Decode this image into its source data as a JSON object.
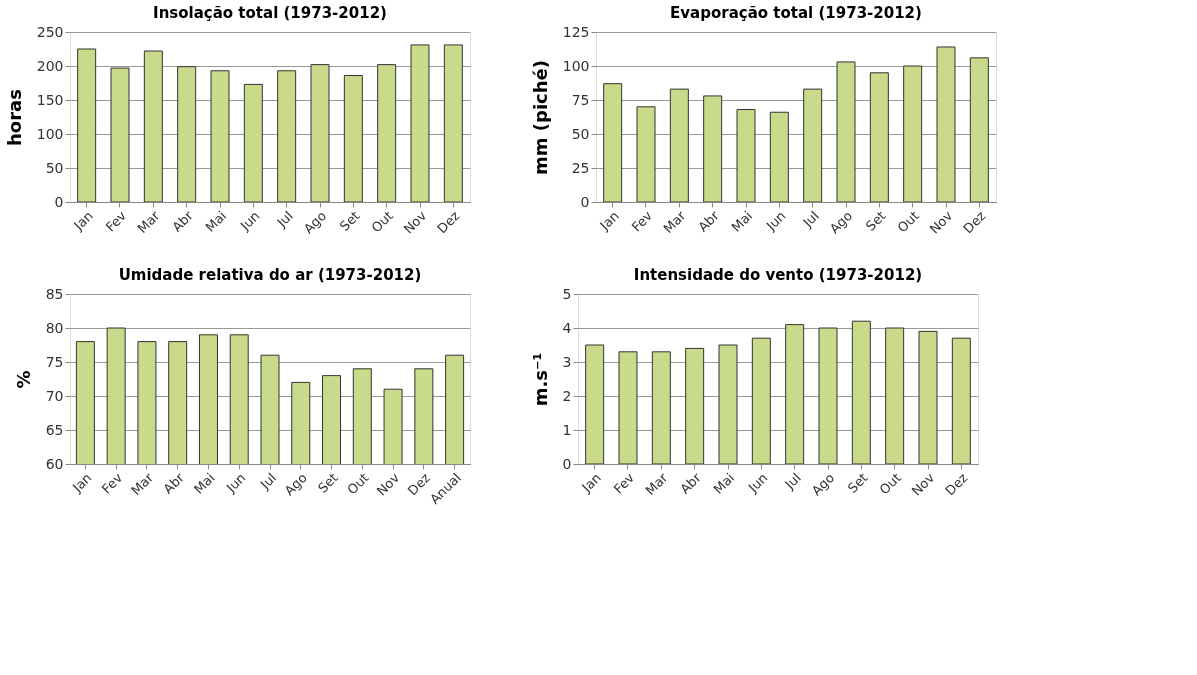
{
  "chart_data": [
    {
      "type": "bar",
      "title": "Insolação total (1973-2012)",
      "ylabel": "horas",
      "categories": [
        "Jan",
        "Fev",
        "Mar",
        "Abr",
        "Mai",
        "Jun",
        "Jul",
        "Ago",
        "Set",
        "Out",
        "Nov",
        "Dez"
      ],
      "values": [
        225,
        197,
        222,
        199,
        193,
        173,
        193,
        202,
        186,
        202,
        231,
        231
      ],
      "color": "#c9da8a",
      "ylim": [
        0,
        250
      ],
      "yticks": [
        0,
        50,
        100,
        150,
        200,
        250
      ],
      "grid": "y"
    },
    {
      "type": "bar",
      "title": "Evaporação total (1973-2012)",
      "ylabel": "mm (piché)",
      "categories": [
        "Jan",
        "Fev",
        "Mar",
        "Abr",
        "Mai",
        "Jun",
        "Jul",
        "Ago",
        "Set",
        "Out",
        "Nov",
        "Dez"
      ],
      "values": [
        87,
        70,
        83,
        78,
        68,
        66,
        83,
        103,
        95,
        100,
        114,
        106
      ],
      "color": "#c9da8a",
      "ylim": [
        0,
        125
      ],
      "yticks": [
        0,
        25,
        50,
        75,
        100,
        125
      ],
      "grid": "y"
    },
    {
      "type": "bar",
      "title": "Umidade relativa do ar (1973-2012)",
      "ylabel": "%",
      "categories": [
        "Jan",
        "Fev",
        "Mar",
        "Abr",
        "Mai",
        "Jun",
        "Jul",
        "Ago",
        "Set",
        "Out",
        "Nov",
        "Dez",
        "Anual"
      ],
      "values": [
        78,
        80,
        78,
        78,
        79,
        79,
        76,
        72,
        73,
        74,
        71,
        74,
        76
      ],
      "color": "#c9da8a",
      "ylim": [
        60,
        85
      ],
      "yticks": [
        60,
        65,
        70,
        75,
        80,
        85
      ],
      "grid": "y"
    },
    {
      "type": "bar",
      "title": "Intensidade do vento (1973-2012)",
      "ylabel": "m.s⁻¹",
      "categories": [
        "Jan",
        "Fev",
        "Mar",
        "Abr",
        "Mai",
        "Jun",
        "Jul",
        "Ago",
        "Set",
        "Out",
        "Nov",
        "Dez"
      ],
      "values": [
        3.5,
        3.3,
        3.3,
        3.4,
        3.5,
        3.7,
        4.1,
        4.0,
        4.2,
        4.0,
        3.9,
        3.7
      ],
      "color": "#c9da8a",
      "ylim": [
        0,
        5
      ],
      "yticks": [
        0,
        1,
        2,
        3,
        4,
        5
      ],
      "grid": "y"
    }
  ]
}
